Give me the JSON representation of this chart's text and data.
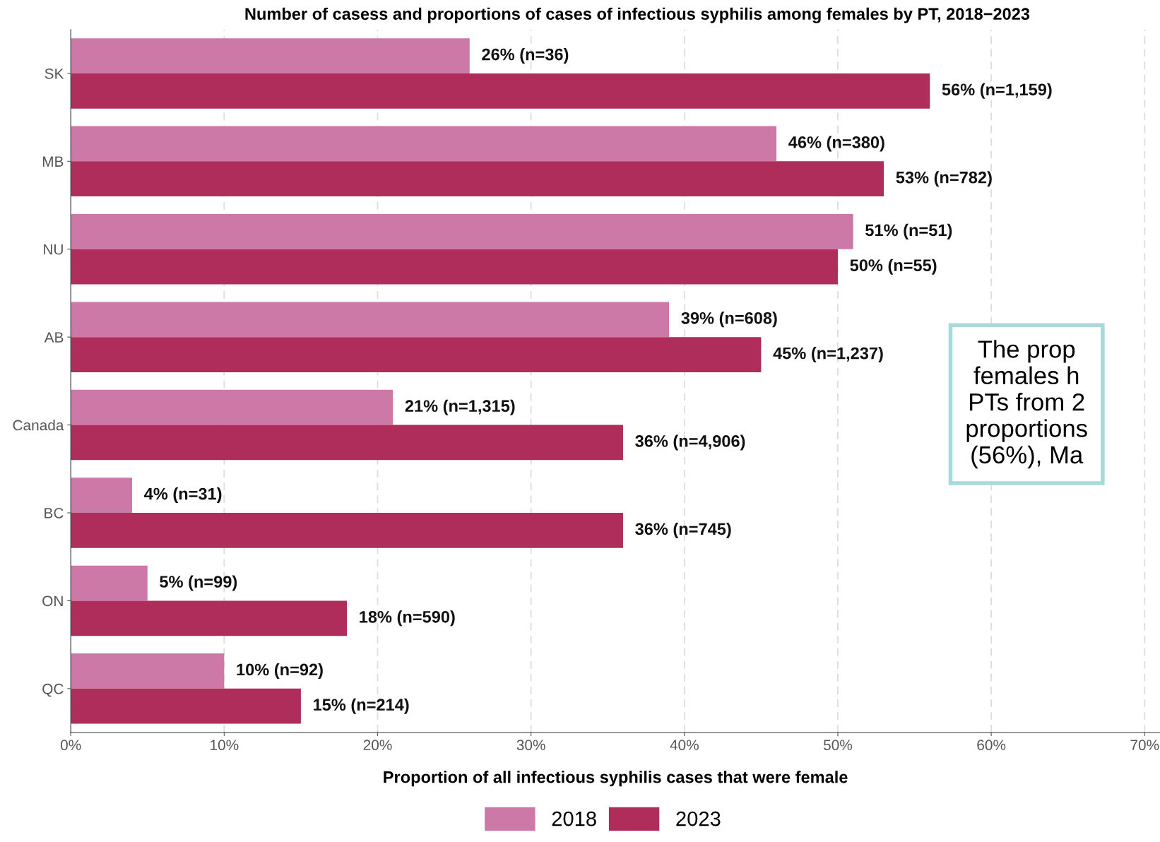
{
  "chart_data": {
    "type": "bar",
    "orientation": "horizontal",
    "title": "Number of casess and proportions of cases of infectious syphilis among females by PT, 2018−2023",
    "xlabel": "Proportion of all infectious syphilis cases that were female",
    "categories": [
      "SK",
      "MB",
      "NU",
      "AB",
      "Canada",
      "BC",
      "ON",
      "QC"
    ],
    "series": [
      {
        "name": "2018",
        "color": "#cc79a7",
        "values": [
          26,
          46,
          51,
          39,
          21,
          4,
          5,
          10
        ],
        "value_labels": [
          "26% (n=36)",
          "46% (n=380)",
          "51% (n=51)",
          "39% (n=608)",
          "21% (n=1,315)",
          "4% (n=31)",
          "5% (n=99)",
          "10% (n=92)"
        ]
      },
      {
        "name": "2023",
        "color": "#ae2d5a",
        "values": [
          56,
          53,
          50,
          45,
          36,
          36,
          18,
          15
        ],
        "value_labels": [
          "56% (n=1,159)",
          "53% (n=782)",
          "50% (n=55)",
          "45% (n=1,237)",
          "36% (n=4,906)",
          "36% (n=745)",
          "18% (n=590)",
          "15% (n=214)"
        ]
      }
    ],
    "xlim": [
      0,
      71
    ],
    "xticks": [
      {
        "value": 0,
        "label": "0%"
      },
      {
        "value": 10,
        "label": "10%"
      },
      {
        "value": 20,
        "label": "20%"
      },
      {
        "value": 30,
        "label": "30%"
      },
      {
        "value": 40,
        "label": "40%"
      },
      {
        "value": 50,
        "label": "50%"
      },
      {
        "value": 60,
        "label": "60%"
      },
      {
        "value": 70,
        "label": "70%"
      }
    ],
    "grid": "x",
    "legend": "bottom",
    "annotations": [
      "The prop\nfemales h\nPTs from 2\nproportions\n(56%), Ma"
    ]
  }
}
